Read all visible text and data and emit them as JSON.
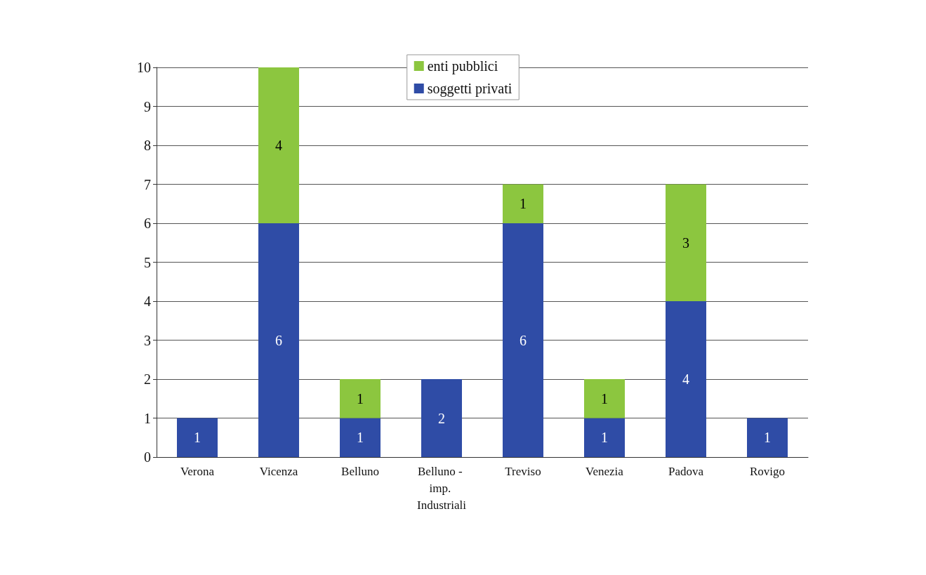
{
  "chart_data": {
    "type": "bar",
    "stacked": true,
    "categories": [
      "Verona",
      "Vicenza",
      "Belluno",
      "Belluno - imp. Industriali",
      "Treviso",
      "Venezia",
      "Padova",
      "Rovigo"
    ],
    "series": [
      {
        "name": "soggetti privati",
        "color": "#2f4ca6",
        "values": [
          1,
          6,
          1,
          2,
          6,
          1,
          4,
          1
        ]
      },
      {
        "name": "enti pubblici",
        "color": "#8cc63f",
        "values": [
          null,
          4,
          1,
          null,
          1,
          1,
          3,
          null
        ]
      }
    ],
    "ylim": [
      0,
      10
    ],
    "yticks": [
      0,
      1,
      2,
      3,
      4,
      5,
      6,
      7,
      8,
      9,
      10
    ],
    "grid": "y",
    "legend": "top",
    "data_labels": true
  }
}
